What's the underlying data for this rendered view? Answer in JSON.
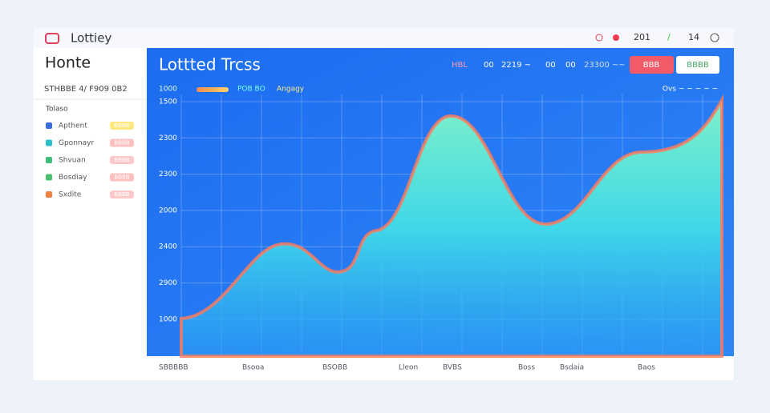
{
  "header": {
    "logo": "Lottiey",
    "status": [
      "201",
      "14"
    ]
  },
  "sidebar": {
    "title": "Honte",
    "subtitle": "STHBBE 4/ F909 0B2",
    "section": "Tolaso",
    "items": [
      {
        "name": "Apthent",
        "badge": "BBBB"
      },
      {
        "name": "Gponnayr",
        "badge": "BBBB"
      },
      {
        "name": "Shvuan",
        "badge": "BBBB"
      },
      {
        "name": "Bosdiay",
        "badge": "BBBB"
      },
      {
        "name": "Sxdite",
        "badge": "BBBB"
      }
    ]
  },
  "panel": {
    "title": "Lottted Trcss",
    "controls": [
      "HBL",
      "00",
      "2219 ~",
      "00",
      "00",
      "23300 ~~"
    ],
    "buttons": [
      "BBB",
      "BBBB"
    ],
    "legend": [
      "1000",
      "POB BO",
      "Angagy"
    ],
    "legend_right": "Ovs ~ ~ ~ ~ ~",
    "y_labels": [
      "1500",
      "2300",
      "2300",
      "2000",
      "2400",
      "2900",
      "1000"
    ],
    "x_labels": [
      "SBBBBB",
      "Bsooa",
      "BSOBB",
      "Lleon",
      "BVBS",
      "Boss",
      "Bsdaia",
      "Baos"
    ]
  }
}
